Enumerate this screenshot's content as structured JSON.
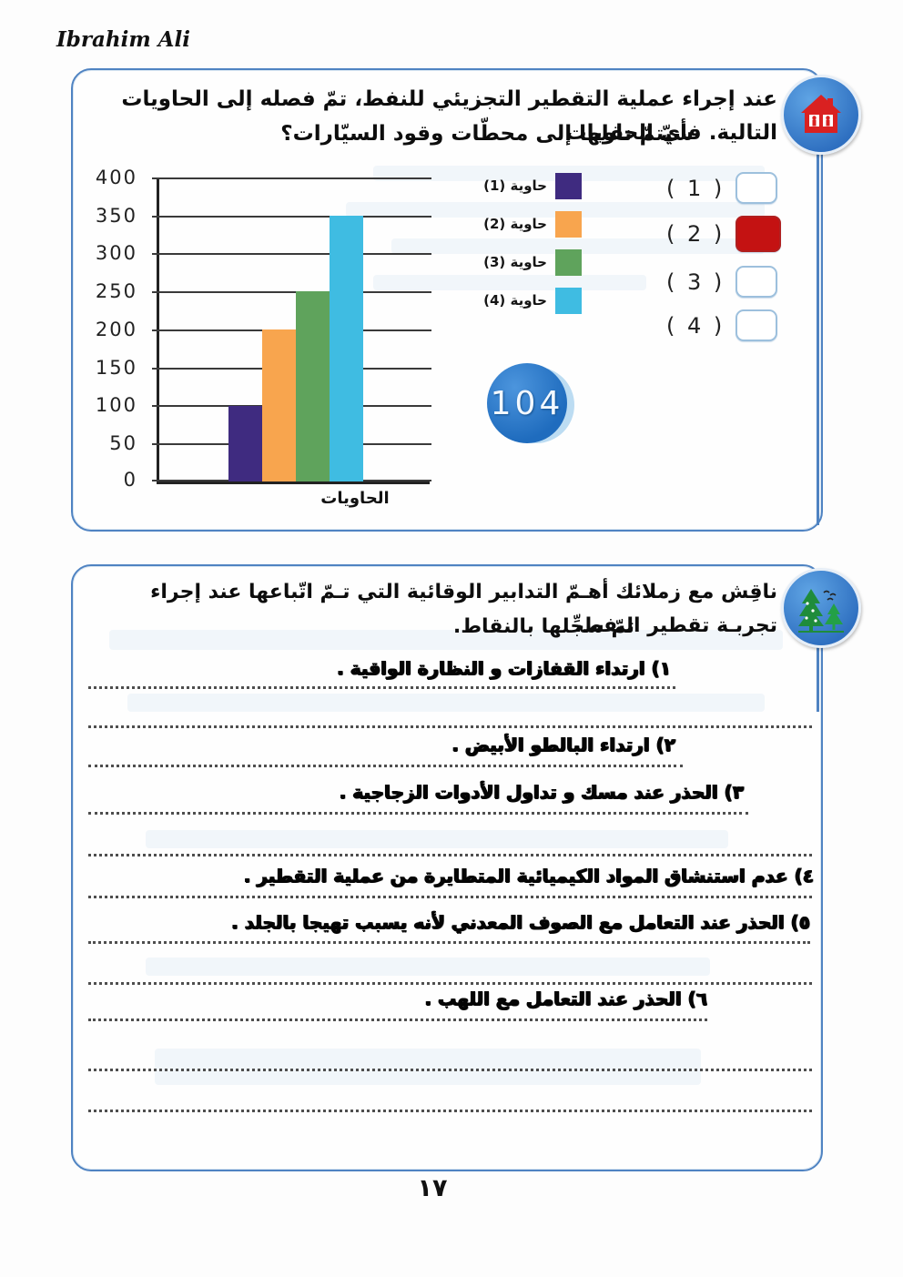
{
  "page": {
    "author": "Ibrahim Ali",
    "page_number": "١٧"
  },
  "question1": {
    "line1": "عند إجراء عملية التقطير التجزيئي للنفط، تمّ فصله إلى الحاويات التالية. فأيّ الحاويات",
    "line2": "سيتمّ نقلها إلى محطّات وقود السيّارات؟",
    "badge_number": "104",
    "options": [
      {
        "label": "( 1 )",
        "checked": false
      },
      {
        "label": "( 2 )",
        "checked": true
      },
      {
        "label": "( 3 )",
        "checked": false
      },
      {
        "label": "( 4 )",
        "checked": false
      }
    ],
    "checked_color": "#c41212"
  },
  "chart_data": {
    "type": "bar",
    "title": "",
    "xlabel": "الحاويات",
    "ylabel": "",
    "ylim": [
      0,
      400
    ],
    "ytick_step": 50,
    "yticks": [
      "400",
      "350",
      "300",
      "250",
      "200",
      "150",
      "100",
      "50",
      "0"
    ],
    "categories": [
      "حاوية (1)",
      "حاوية (2)",
      "حاوية (3)",
      "حاوية (4)"
    ],
    "values": [
      100,
      200,
      250,
      350
    ],
    "colors": [
      "#3f2b80",
      "#f8a54e",
      "#5fa35c",
      "#3fbce2"
    ],
    "grid": true,
    "legend_position": "right-of-plot"
  },
  "question2": {
    "line1": "ناقِش مع زملائك أهـمّ التدابير الوقائية التي تـمّ اتّباعها عند إجراء تجربـة تقطير النفط،",
    "line2": "ثمّ سجِّلها بالنقاط.",
    "points": [
      "١) ارتداء القفازات و النظارة الواقية .",
      "٢) ارتداء البالطو الأبيض .",
      "٣) الحذر عند مسك و تداول الأدوات الزجاجية .",
      "٤) عدم استنشاق المواد الكيميائية المتطايرة من عملية التقطير .",
      "٥) الحذر عند التعامل مع الصوف المعدني لأنه يسبب تهيجا بالجلد .",
      "٦) الحذر عند التعامل مع اللهب ."
    ]
  }
}
